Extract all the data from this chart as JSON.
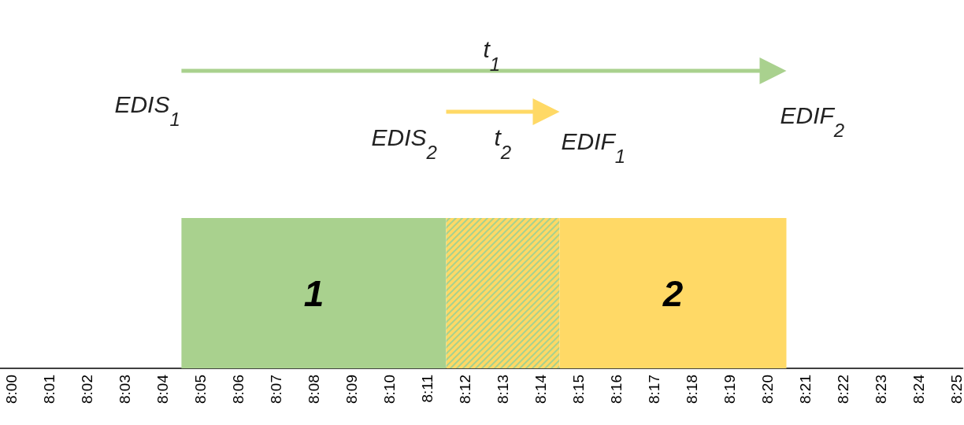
{
  "chart_data": {
    "type": "bar",
    "orientation": "horizontal",
    "categories": [
      null
    ],
    "annotations": [
      "t$_{1}$",
      "EDIS$_{1}$",
      "EDIF$_{2}$",
      "EDIS$_{2}$",
      "t$_{2}$",
      "EDIF$_{1}$"
    ],
    "series": [
      {
        "name": "1",
        "color": "#a9d18e",
        "values": [
          0.1167
        ],
        "base": [
          8.075
        ]
      },
      {
        "color": "#ffd966",
        "values": [
          0.05
        ],
        "base": [
          8.1917
        ]
      },
      {
        "name": "2",
        "color": "#ffd966",
        "values": [
          0.1
        ],
        "base": [
          8.2417
        ]
      }
    ],
    "xlim": [
      7.995,
      8.4195
    ],
    "xticks": [
      {
        "value": 8,
        "label": "8:00"
      },
      {
        "value": 8.0167,
        "label": "8:01"
      },
      {
        "value": 8.0333,
        "label": "8:02"
      },
      {
        "value": 8.05,
        "label": "8:03"
      },
      {
        "value": 8.0667,
        "label": "8:04"
      },
      {
        "value": 8.0833,
        "label": "8:05"
      },
      {
        "value": 8.1,
        "label": "8:06"
      },
      {
        "value": 8.1167,
        "label": "8:07"
      },
      {
        "value": 8.1333,
        "label": "8:08"
      },
      {
        "value": 8.15,
        "label": "8:09"
      },
      {
        "value": 8.1667,
        "label": "8:10"
      },
      {
        "value": 8.1833,
        "label": "8:11"
      },
      {
        "value": 8.2,
        "label": "8:12"
      },
      {
        "value": 8.2167,
        "label": "8:13"
      },
      {
        "value": 8.2333,
        "label": "8:14"
      },
      {
        "value": 8.25,
        "label": "8:15"
      },
      {
        "value": 8.2667,
        "label": "8:16"
      },
      {
        "value": 8.2833,
        "label": "8:17"
      },
      {
        "value": 8.3,
        "label": "8:18"
      },
      {
        "value": 8.3167,
        "label": "8:19"
      },
      {
        "value": 8.3333,
        "label": "8:20"
      },
      {
        "value": 8.35,
        "label": "8:21"
      },
      {
        "value": 8.3667,
        "label": "8:22"
      },
      {
        "value": 8.3833,
        "label": "8:23"
      },
      {
        "value": 8.4,
        "label": "8:24"
      },
      {
        "value": 8.4167,
        "label": "8:25"
      }
    ],
    "legend": false
  }
}
